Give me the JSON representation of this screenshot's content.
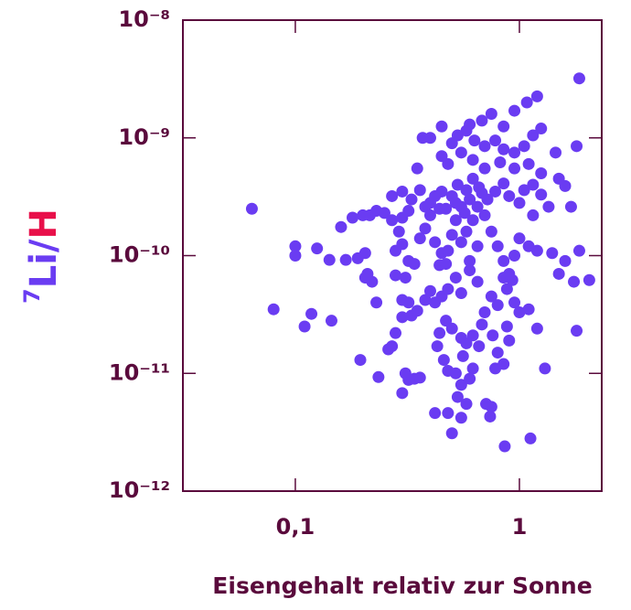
{
  "chart_data": {
    "type": "scatter",
    "xlabel": "Eisengehalt relativ zur Sonne",
    "ylabel": [
      "7",
      "Li/",
      "H"
    ],
    "xlog": true,
    "ylog": true,
    "color": "#6a3cf2",
    "xlim": [
      0.0315,
      2.33
    ],
    "ylim": [
      1e-12,
      1e-08
    ],
    "xticks": [
      {
        "value": 0.1,
        "label": "0,1"
      },
      1
    ],
    "yticks": [
      {
        "value": 1e-12,
        "label": "10⁻¹²"
      },
      {
        "value": 1e-11,
        "label": "10⁻¹¹"
      },
      {
        "value": 1e-10,
        "label": "10⁻¹⁰"
      },
      {
        "value": 1e-09,
        "label": "10⁻⁹"
      },
      {
        "value": 1e-08,
        "label": "10⁻⁸"
      }
    ],
    "x": [
      0.064,
      0.08,
      0.1,
      0.1,
      0.125,
      0.118,
      0.11,
      0.145,
      0.142,
      0.168,
      0.16,
      0.18,
      0.195,
      0.235,
      0.2,
      0.215,
      0.23,
      0.25,
      0.19,
      0.205,
      0.21,
      0.22,
      0.205,
      0.23,
      0.26,
      0.27,
      0.28,
      0.3,
      0.31,
      0.32,
      0.34,
      0.36,
      0.33,
      0.3,
      0.32,
      0.3,
      0.35,
      0.28,
      0.3,
      0.31,
      0.28,
      0.32,
      0.34,
      0.29,
      0.27,
      0.3,
      0.32,
      0.33,
      0.3,
      0.27,
      0.35,
      0.37,
      0.4,
      0.36,
      0.38,
      0.4,
      0.42,
      0.44,
      0.45,
      0.4,
      0.38,
      0.36,
      0.42,
      0.45,
      0.48,
      0.44,
      0.47,
      0.4,
      0.38,
      0.42,
      0.45,
      0.48,
      0.44,
      0.47,
      0.5,
      0.43,
      0.46,
      0.48,
      0.42,
      0.48,
      0.5,
      0.53,
      0.55,
      0.58,
      0.55,
      0.52,
      0.56,
      0.6,
      0.62,
      0.55,
      0.58,
      0.62,
      0.66,
      0.68,
      0.71,
      0.75,
      0.74,
      0.86,
      1.12,
      1.2,
      1.3,
      0.78,
      0.85,
      0.8,
      0.9,
      0.88,
      0.76,
      0.7,
      0.75,
      0.8,
      0.88,
      0.95,
      1.0,
      1.1,
      0.93,
      0.85,
      0.9,
      0.65,
      0.6,
      0.55,
      0.52,
      0.6,
      0.65,
      0.55,
      0.58,
      0.5,
      0.52,
      0.55,
      0.6,
      0.65,
      0.7,
      0.75,
      0.8,
      0.85,
      0.95,
      1.0,
      1.1,
      1.2,
      1.4,
      1.6,
      1.75,
      1.5,
      1.85,
      2.05,
      1.8,
      0.5,
      0.53,
      0.58,
      0.62,
      0.66,
      0.72,
      0.78,
      0.85,
      0.9,
      1.0,
      1.05,
      1.15,
      1.25,
      1.35,
      1.15,
      1.6,
      1.5,
      1.7,
      1.25,
      1.1,
      0.95,
      0.82,
      0.7,
      0.62,
      0.55,
      0.48,
      0.45,
      0.5,
      0.53,
      0.58,
      0.63,
      0.7,
      0.78,
      0.85,
      0.95,
      1.05,
      1.15,
      1.25,
      1.45,
      1.8,
      0.68,
      0.75,
      0.95,
      1.08,
      1.2,
      1.85,
      0.85,
      0.6,
      0.45,
      0.47,
      0.52,
      0.57,
      0.62,
      0.68
    ],
    "values": [
      2.5e-10,
      3.5e-11,
      1.2e-10,
      1e-10,
      1.15e-10,
      3.2e-11,
      2.5e-11,
      2.8e-11,
      9.2e-11,
      9.2e-11,
      1.75e-10,
      2.1e-10,
      1.3e-11,
      9.3e-12,
      2.2e-10,
      2.2e-10,
      2.4e-10,
      2.3e-10,
      9.5e-11,
      1.05e-10,
      7e-11,
      6e-11,
      6.5e-11,
      4e-11,
      1.6e-11,
      1.7e-11,
      2.2e-11,
      6.8e-12,
      1e-11,
      8.8e-12,
      9e-12,
      9.2e-12,
      3.1e-11,
      3e-11,
      4e-11,
      4.2e-11,
      3.4e-11,
      1.1e-10,
      1.25e-10,
      6.5e-11,
      6.8e-11,
      9e-11,
      8.5e-11,
      1.6e-10,
      2e-10,
      2.1e-10,
      2.4e-10,
      3e-10,
      3.5e-10,
      3.2e-10,
      5.5e-10,
      1e-09,
      1e-09,
      3.6e-10,
      2.6e-10,
      2.8e-10,
      3.2e-10,
      2.5e-10,
      3.5e-10,
      2.2e-10,
      1.7e-10,
      1.4e-10,
      1.3e-10,
      1.05e-10,
      1.1e-10,
      8.3e-11,
      8.5e-11,
      5e-11,
      4.2e-11,
      4e-11,
      4.5e-11,
      5.2e-11,
      2.2e-11,
      2.8e-11,
      2.4e-11,
      1.7e-11,
      1.3e-11,
      1.05e-11,
      4.6e-12,
      4.6e-12,
      3.1e-12,
      6.3e-12,
      4.2e-12,
      5.5e-12,
      8e-12,
      1e-11,
      1.4e-11,
      9e-12,
      1.1e-11,
      2e-11,
      1.8e-11,
      2.1e-11,
      1.7e-11,
      2.6e-11,
      5.5e-12,
      5.2e-12,
      4.3e-12,
      2.4e-12,
      2.8e-12,
      2.4e-11,
      1.1e-11,
      1.1e-11,
      1.2e-11,
      1.5e-11,
      1.9e-11,
      2.5e-11,
      2.1e-11,
      3.3e-11,
      4.5e-11,
      3.8e-11,
      5.2e-11,
      4e-11,
      3.3e-11,
      3.5e-11,
      6.2e-11,
      6.5e-11,
      7e-11,
      6e-11,
      7.5e-11,
      4.8e-11,
      6.5e-11,
      9e-11,
      1.2e-10,
      1.3e-10,
      1.6e-10,
      1.5e-10,
      2e-10,
      2.6e-10,
      3e-10,
      2.6e-10,
      2.2e-10,
      1.6e-10,
      1.2e-10,
      9e-11,
      1e-10,
      1.4e-10,
      1.2e-10,
      1.1e-10,
      1.05e-10,
      9e-11,
      6e-11,
      7e-11,
      1.1e-10,
      6.2e-11,
      2.3e-11,
      3.2e-10,
      4e-10,
      3.6e-10,
      4.5e-10,
      3.8e-10,
      3e-10,
      3.5e-10,
      4.1e-10,
      3.2e-10,
      2.8e-10,
      3.6e-10,
      4e-10,
      3.3e-10,
      2.6e-10,
      2.2e-10,
      3.9e-10,
      4.5e-10,
      2.6e-10,
      5e-10,
      6e-10,
      5.5e-10,
      6.2e-10,
      5.5e-10,
      6.5e-10,
      7.5e-10,
      6e-10,
      7e-10,
      9e-10,
      1.05e-09,
      1.15e-09,
      9.5e-10,
      8.5e-10,
      9.5e-10,
      8e-10,
      7.5e-10,
      8.5e-10,
      1.05e-09,
      1.2e-09,
      7.5e-10,
      8.5e-10,
      1.4e-09,
      1.6e-09,
      1.7e-09,
      2e-09,
      2.25e-09,
      3.2e-09,
      1.25e-09,
      1.3e-09,
      1.25e-09,
      2.5e-10,
      2.8e-10,
      2.3e-10,
      2e-10,
      3.4e-10
    ]
  }
}
